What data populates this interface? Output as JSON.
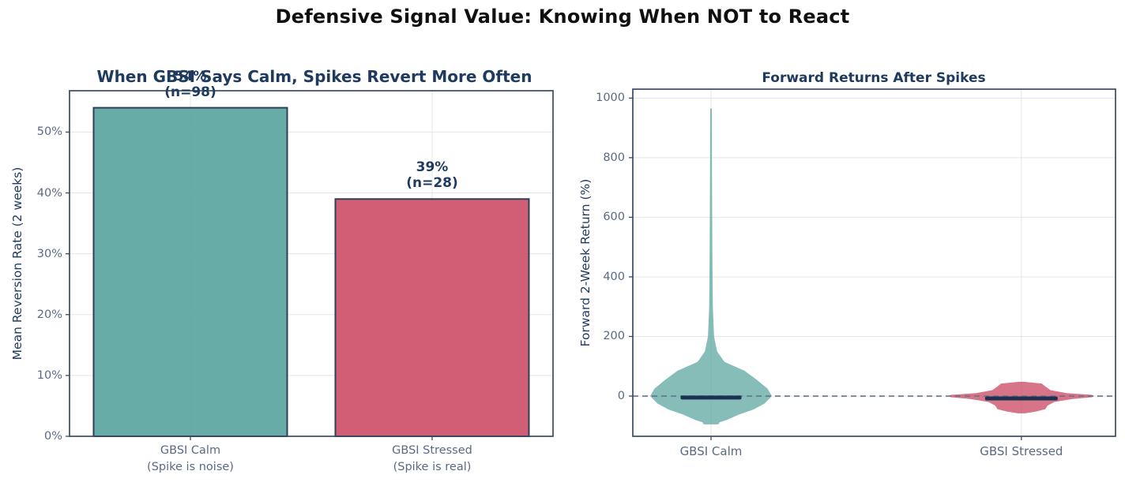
{
  "figure": {
    "title": "Defensive Signal Value: Knowing When NOT to React"
  },
  "palette": {
    "near_black": "#101010",
    "navy_text": "#1e3a5f",
    "slate_tick": "#5a6a83",
    "grid": "#e5e5e5",
    "spine": "#3b4a63",
    "zero_line": "#64748b",
    "median_bar": "#1d3250",
    "teal": "#58a39e",
    "crimson": "#cc4d66",
    "bar_edge": "#2e3f5c"
  },
  "chart_data": [
    {
      "type": "bar",
      "title": "When GBSI Says Calm, Spikes Revert More Often",
      "ylabel": "Mean Reversion Rate (2 weeks)",
      "categories": [
        "GBSI Calm\n(Spike is noise)",
        "GBSI Stressed\n(Spike is real)"
      ],
      "values": [
        54,
        39
      ],
      "sample_sizes": [
        98,
        28
      ],
      "annotations": [
        "54%\n(n=98)",
        "39%\n(n=28)"
      ],
      "bar_colors": [
        "#58a39e",
        "#cc4d66"
      ],
      "ylim": [
        0,
        56.8
      ],
      "yticks": [
        0,
        10,
        20,
        30,
        40,
        50
      ],
      "ytick_labels": [
        "0%",
        "10%",
        "20%",
        "30%",
        "40%",
        "50%"
      ],
      "grid": true
    },
    {
      "type": "violin",
      "title": "Forward Returns After Spikes",
      "ylabel": "Forward 2-Week Return (%)",
      "categories": [
        "GBSI Calm",
        "GBSI Stressed"
      ],
      "ylim": [
        -135,
        1030
      ],
      "yticks": [
        0,
        200,
        400,
        600,
        800,
        1000
      ],
      "ytick_labels": [
        "0",
        "200",
        "400",
        "600",
        "800",
        "1000"
      ],
      "zero_line_y": 0,
      "grid": true,
      "series": [
        {
          "name": "GBSI Calm",
          "color": "#58a39e",
          "fill_opacity": 0.72,
          "median": -5,
          "range": [
            -95,
            965
          ],
          "profile": [
            [
              965,
              0.013
            ],
            [
              750,
              0.016
            ],
            [
              500,
              0.022
            ],
            [
              300,
              0.03
            ],
            [
              200,
              0.05
            ],
            [
              150,
              0.1
            ],
            [
              115,
              0.22
            ],
            [
              85,
              0.55
            ],
            [
              55,
              0.75
            ],
            [
              25,
              0.93
            ],
            [
              0,
              1.0
            ],
            [
              -25,
              0.88
            ],
            [
              -45,
              0.7
            ],
            [
              -62,
              0.46
            ],
            [
              -80,
              0.26
            ],
            [
              -88,
              0.14
            ],
            [
              -95,
              0.12
            ]
          ]
        },
        {
          "name": "GBSI Stressed",
          "color": "#cc4d66",
          "fill_opacity": 0.78,
          "median": -8,
          "range": [
            -58,
            48
          ],
          "profile": [
            [
              48,
              0.03
            ],
            [
              42,
              0.28
            ],
            [
              32,
              0.33
            ],
            [
              20,
              0.4
            ],
            [
              10,
              0.62
            ],
            [
              4,
              0.97
            ],
            [
              0,
              1.0
            ],
            [
              -4,
              0.97
            ],
            [
              -10,
              0.7
            ],
            [
              -20,
              0.45
            ],
            [
              -32,
              0.36
            ],
            [
              -44,
              0.33
            ],
            [
              -52,
              0.2
            ],
            [
              -58,
              0.05
            ]
          ]
        }
      ]
    }
  ]
}
